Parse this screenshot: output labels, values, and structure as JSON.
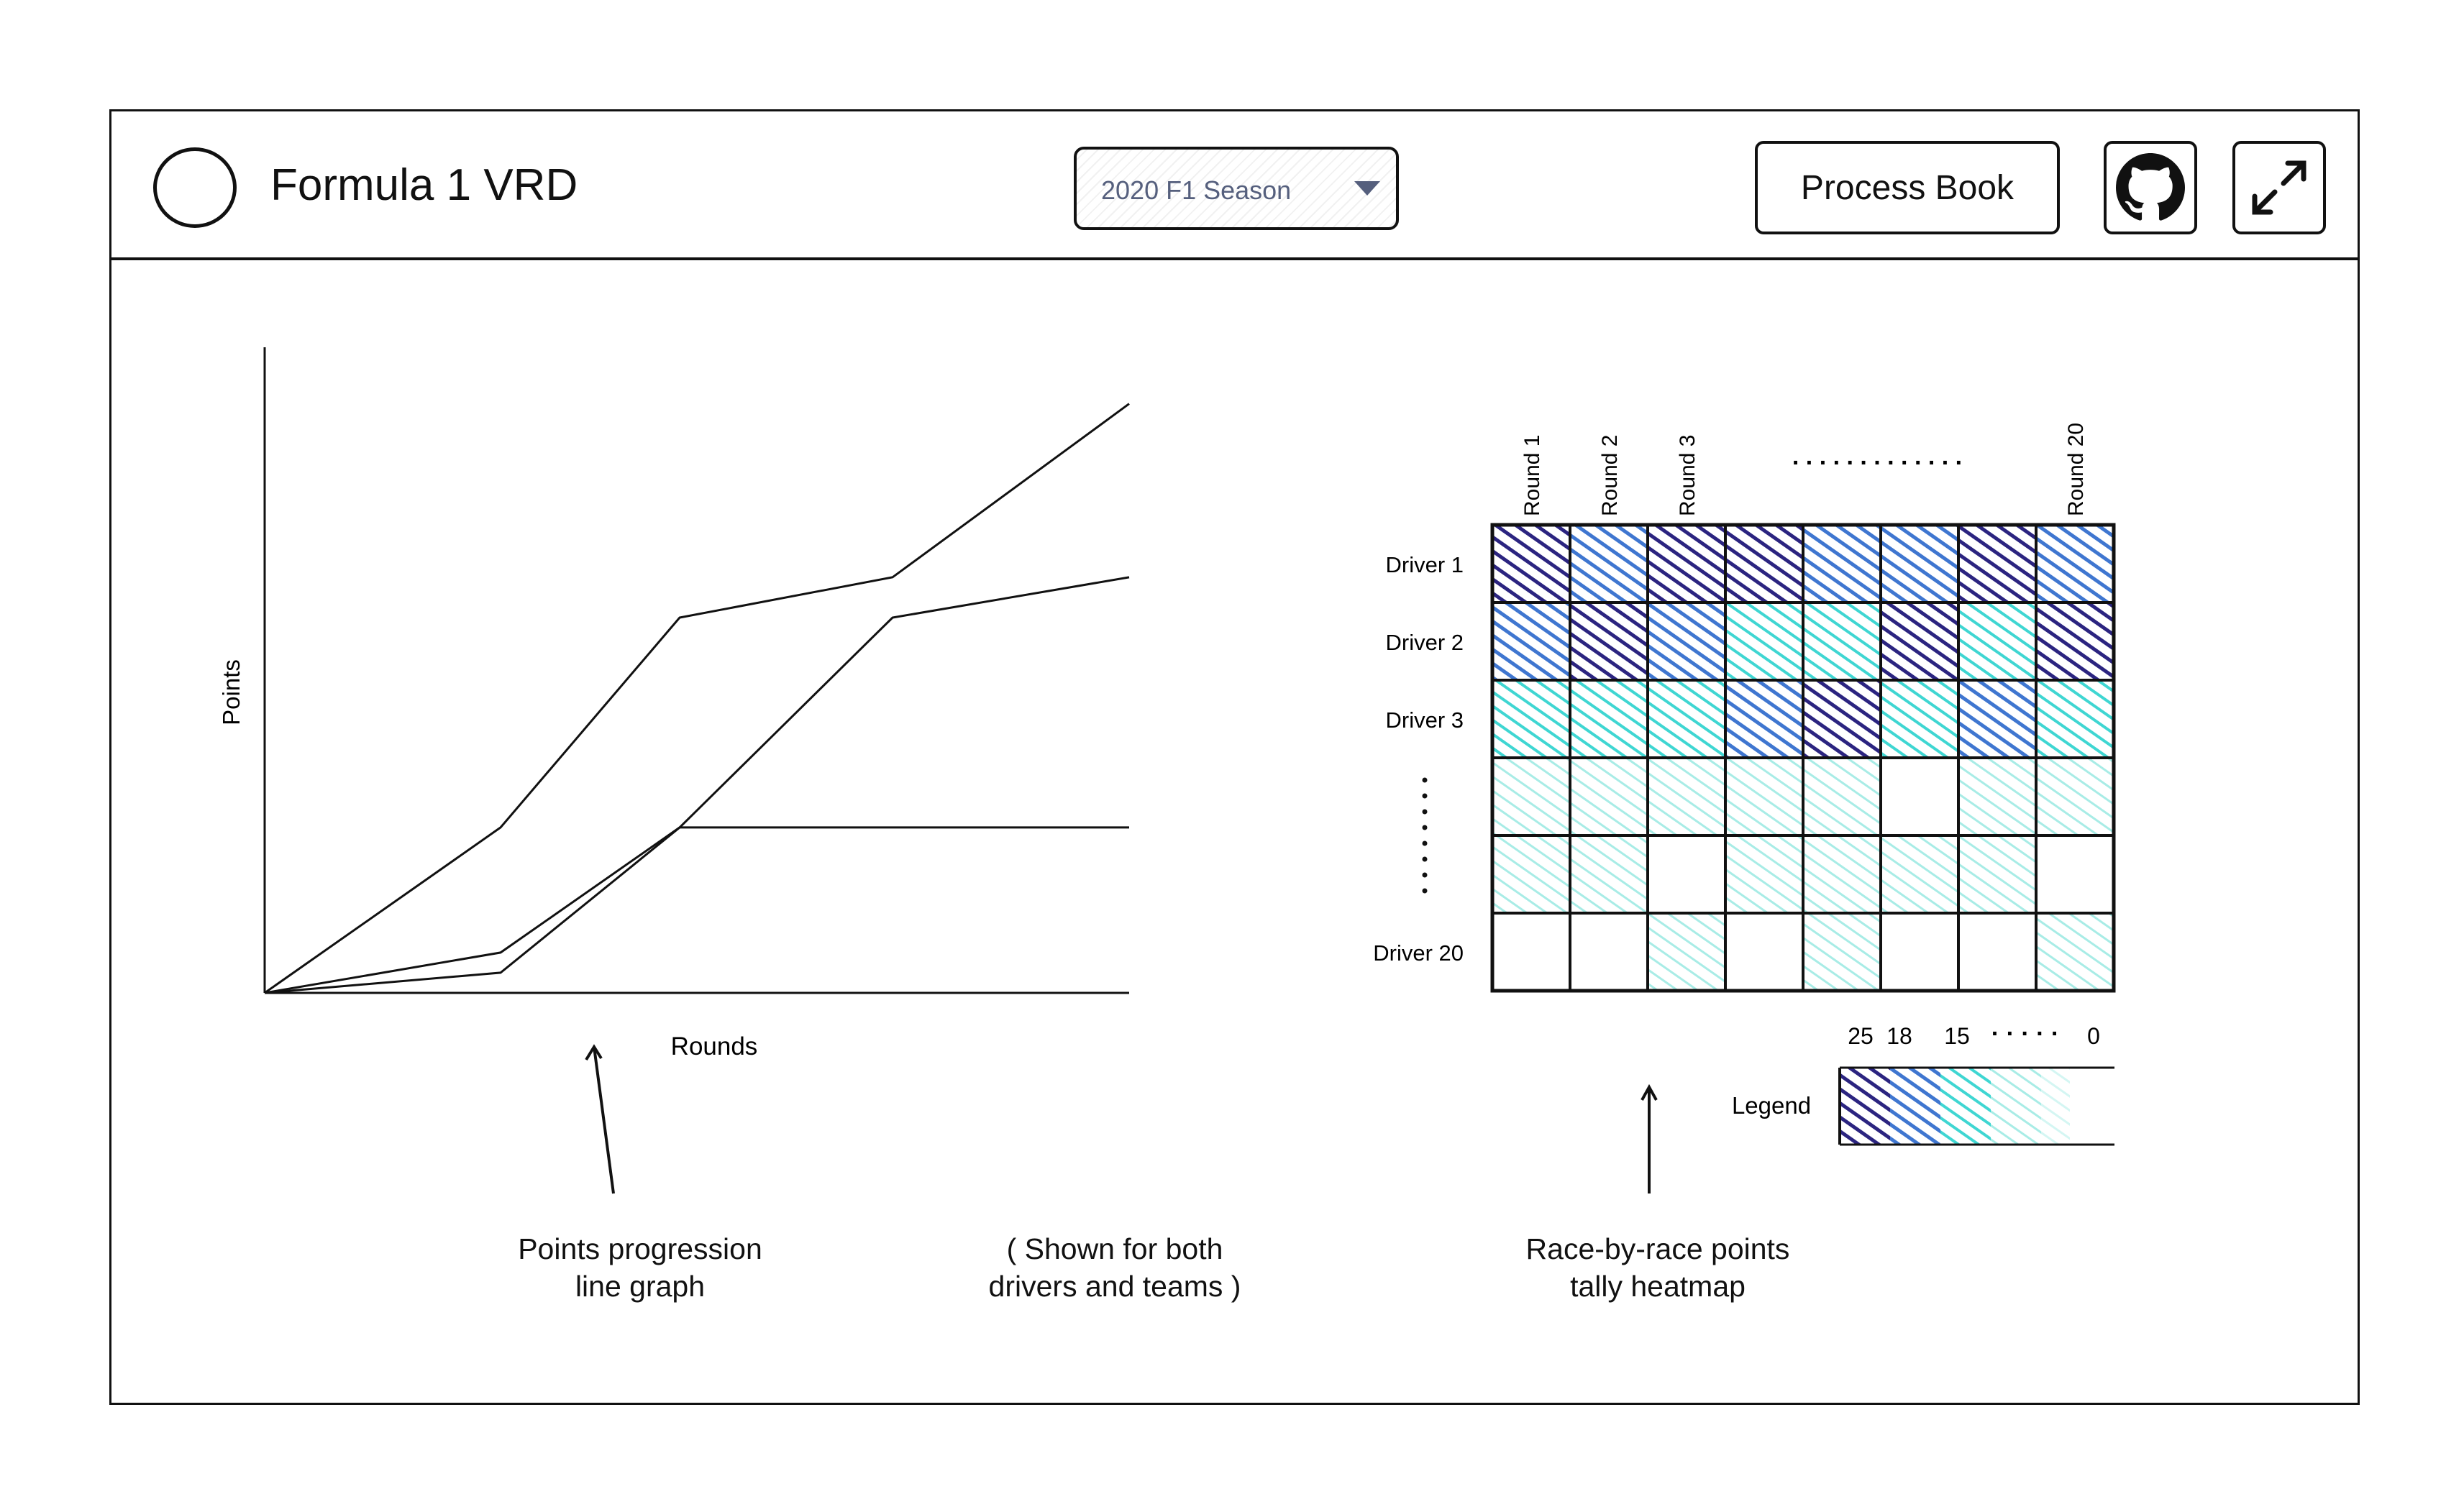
{
  "header": {
    "app_title": "Formula 1 VRD",
    "season_selector": {
      "selected": "2020 F1 Season"
    },
    "process_book_label": "Process Book",
    "icons": {
      "logo": "logo-circle",
      "github": "github-icon",
      "fullscreen": "expand-icon",
      "dropdown": "chevron-down-icon"
    }
  },
  "line_chart": {
    "ylabel": "Points",
    "xlabel": "Rounds"
  },
  "heatmap": {
    "columns": [
      "Round 1",
      "Round 2",
      "Round 3",
      "",
      "",
      "",
      "",
      "Round 20"
    ],
    "column_ellipsis": ". . . . . . . . . . . . .",
    "rows": [
      "Driver 1",
      "Driver 2",
      "Driver 3",
      "",
      "",
      "Driver 20"
    ],
    "row_ellipsis": ":",
    "legend_label": "Legend",
    "legend_ticks": [
      "25",
      "18",
      "15",
      "· · · · ·",
      "0"
    ]
  },
  "annotations": {
    "left": [
      "Points progression",
      "line graph"
    ],
    "middle": [
      "( Shown for both",
      "drivers and teams )"
    ],
    "right": [
      "Race-by-race points",
      "tally heatmap"
    ]
  },
  "colors": {
    "level_25": "#2b2480",
    "level_18": "#3f76d0",
    "level_15": "#3fd6d2",
    "level_low": "#a8ece6",
    "level_0": "#ffffff"
  },
  "chart_data": [
    {
      "type": "line",
      "xlabel": "Rounds",
      "ylabel": "Points",
      "title": "",
      "x": [
        0,
        1,
        2,
        3,
        4
      ],
      "series": [
        {
          "values": [
            0,
            41,
            93,
            103,
            146
          ]
        },
        {
          "values": [
            0,
            10,
            41,
            93,
            103
          ]
        },
        {
          "values": [
            0,
            5,
            41,
            41,
            41
          ]
        }
      ]
    },
    {
      "type": "heatmap",
      "columns": [
        "Round 1",
        "Round 2",
        "Round 3",
        "",
        "",
        "",
        "",
        "Round 20"
      ],
      "rows": [
        "Driver 1",
        "Driver 2",
        "Driver 3",
        "",
        "",
        "Driver 20"
      ],
      "values": [
        [
          25,
          18,
          25,
          25,
          18,
          18,
          25,
          18
        ],
        [
          18,
          25,
          18,
          15,
          15,
          25,
          15,
          25
        ],
        [
          15,
          15,
          15,
          18,
          25,
          15,
          18,
          15
        ],
        [
          1,
          1,
          1,
          1,
          1,
          0,
          1,
          1
        ],
        [
          1,
          1,
          0,
          1,
          1,
          1,
          1,
          0
        ],
        [
          0,
          0,
          1,
          0,
          1,
          0,
          0,
          1
        ]
      ],
      "legend": [
        "25",
        "18",
        "15",
        "0"
      ]
    }
  ]
}
